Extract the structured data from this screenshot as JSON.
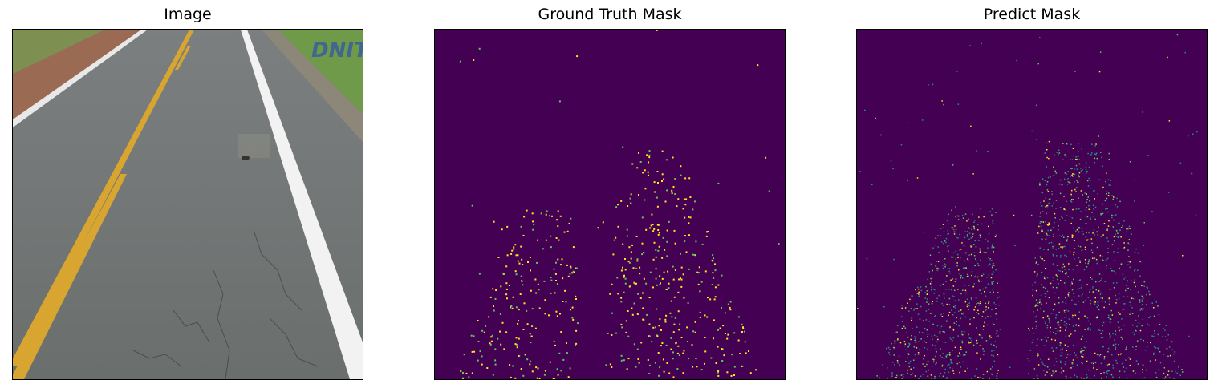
{
  "panels": [
    {
      "title": "Image"
    },
    {
      "title": "Ground Truth Mask"
    },
    {
      "title": "Predict Mask"
    }
  ],
  "colors": {
    "mask_background": "#440154",
    "mask_yellow": "#fde725",
    "mask_green": "#5ec962",
    "mask_teal": "#21918c",
    "asphalt": "#6f7371",
    "lane_yellow": "#d9a531",
    "lane_white": "#f2f2f2",
    "shoulder_dirt": "#9a6b52",
    "grass": "#6f9a4a"
  },
  "icons": {
    "watermark": "dnit-logo"
  },
  "watermark_text": "DNIT"
}
